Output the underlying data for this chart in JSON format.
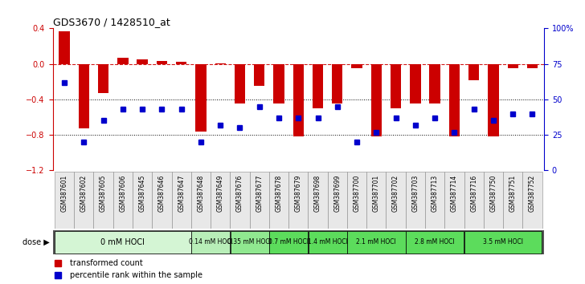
{
  "title": "GDS3670 / 1428510_at",
  "samples": [
    "GSM387601",
    "GSM387602",
    "GSM387605",
    "GSM387606",
    "GSM387645",
    "GSM387646",
    "GSM387647",
    "GSM387648",
    "GSM387649",
    "GSM387676",
    "GSM387677",
    "GSM387678",
    "GSM387679",
    "GSM387698",
    "GSM387699",
    "GSM387700",
    "GSM387701",
    "GSM387702",
    "GSM387703",
    "GSM387713",
    "GSM387714",
    "GSM387716",
    "GSM387750",
    "GSM387751",
    "GSM387752"
  ],
  "bar_values": [
    0.37,
    -0.73,
    -0.33,
    0.07,
    0.05,
    0.03,
    0.02,
    -0.76,
    0.01,
    -0.45,
    -0.25,
    -0.45,
    -0.82,
    -0.5,
    -0.45,
    -0.05,
    -0.82,
    -0.5,
    -0.45,
    -0.45,
    -0.82,
    -0.18,
    -0.82,
    -0.05,
    -0.05
  ],
  "percentile_values": [
    62,
    20,
    35,
    43,
    43,
    43,
    43,
    20,
    32,
    30,
    45,
    37,
    37,
    37,
    45,
    20,
    27,
    37,
    32,
    37,
    27,
    43,
    35,
    40,
    40
  ],
  "dose_groups": [
    {
      "label": "0 mM HOCl",
      "start": 0,
      "end": 7,
      "color": "#d4f5d4"
    },
    {
      "label": "0.14 mM HOCl",
      "start": 7,
      "end": 9,
      "color": "#b8eeb8"
    },
    {
      "label": "0.35 mM HOCl",
      "start": 9,
      "end": 11,
      "color": "#90e890"
    },
    {
      "label": "0.7 mM HOCl",
      "start": 11,
      "end": 13,
      "color": "#5cdc5c"
    },
    {
      "label": "1.4 mM HOCl",
      "start": 13,
      "end": 15,
      "color": "#5cdc5c"
    },
    {
      "label": "2.1 mM HOCl",
      "start": 15,
      "end": 18,
      "color": "#5cdc5c"
    },
    {
      "label": "2.8 mM HOCl",
      "start": 18,
      "end": 21,
      "color": "#5cdc5c"
    },
    {
      "label": "3.5 mM HOCl",
      "start": 21,
      "end": 25,
      "color": "#5cdc5c"
    }
  ],
  "bar_color": "#cc0000",
  "percentile_color": "#0000cc",
  "ylim_left": [
    -1.2,
    0.4
  ],
  "ylim_right": [
    0,
    100
  ],
  "yticks_left": [
    -1.2,
    -0.8,
    -0.4,
    0.0,
    0.4
  ],
  "yticks_right": [
    0,
    25,
    50,
    75,
    100
  ],
  "hline_y": 0.0,
  "dotted_lines": [
    -0.4,
    -0.8
  ],
  "background_color": "#ffffff",
  "dose_bg_color": "#555555",
  "dose_label_color": "#7fbc7f"
}
